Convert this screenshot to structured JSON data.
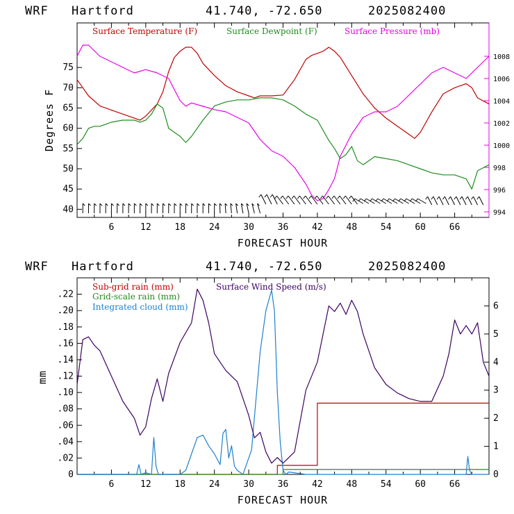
{
  "header": {
    "model": "WRF",
    "station": "Hartford",
    "coords": "41.740, -72.650",
    "init": "2025082400"
  },
  "chart_data": [
    {
      "type": "line",
      "xlabel": "FORECAST HOUR",
      "ylabel": "Degrees F",
      "xlim": [
        0,
        72
      ],
      "ylim": [
        38,
        86
      ],
      "y2lim": [
        993.5,
        1011
      ],
      "x_ticks": [
        6,
        12,
        18,
        24,
        30,
        36,
        42,
        48,
        54,
        60,
        66
      ],
      "y_ticks": [
        40,
        45,
        50,
        55,
        60,
        65,
        70,
        75
      ],
      "y2_ticks": [
        994,
        996,
        998,
        1000,
        1002,
        1004,
        1006,
        1008
      ],
      "x_tick_labels": [
        "6",
        "12",
        "18",
        "24",
        "30",
        "36",
        "42",
        "48",
        "54",
        "60",
        "66"
      ],
      "y_tick_labels": [
        "40",
        "45",
        "50",
        "55",
        "60",
        "65",
        "70",
        "75"
      ],
      "y2_tick_labels": [
        "994",
        "996",
        "998",
        "1000",
        "1002",
        "1004",
        "1006",
        "1008"
      ],
      "legend": [
        "Surface Temperature (F)",
        "Surface Dewpoint (F)",
        "Surface Pressure (mb)"
      ],
      "series": [
        {
          "name": "Surface Temperature (F)",
          "color": "#c00000",
          "axis": "left",
          "x": [
            0,
            2,
            4,
            6,
            8,
            10,
            11,
            12,
            13,
            14,
            15,
            16,
            17,
            18,
            19,
            20,
            21,
            22,
            24,
            26,
            28,
            30,
            31,
            32,
            34,
            36,
            38,
            40,
            41,
            42,
            43,
            44,
            45,
            46,
            48,
            50,
            52,
            54,
            56,
            58,
            59,
            60,
            62,
            64,
            66,
            67,
            68,
            69,
            70,
            72
          ],
          "values": [
            72,
            68,
            65.5,
            64.5,
            63.5,
            62.5,
            62,
            63,
            64.5,
            66,
            69,
            74,
            77.5,
            79,
            80,
            80,
            78.5,
            76,
            73,
            70.5,
            69,
            68,
            67.5,
            68,
            68,
            68.2,
            72,
            77,
            78,
            78.5,
            79,
            80,
            79,
            77.5,
            73,
            68.5,
            65,
            62.5,
            60.5,
            58.5,
            57.5,
            59,
            64,
            68.5,
            70,
            70.5,
            71,
            70,
            67.5,
            66
          ]
        },
        {
          "name": "Surface Dewpoint (F)",
          "color": "#1e8c1e",
          "axis": "left",
          "x": [
            0,
            1,
            2,
            3,
            4,
            6,
            8,
            10,
            11,
            12,
            13,
            14,
            15,
            16,
            18,
            19,
            20,
            22,
            24,
            26,
            28,
            30,
            32,
            34,
            36,
            38,
            40,
            42,
            44,
            45,
            46,
            47,
            48,
            49,
            50,
            52,
            54,
            56,
            58,
            60,
            62,
            64,
            66,
            68,
            69,
            70,
            72
          ],
          "values": [
            56,
            57.5,
            60,
            60.5,
            60.5,
            61.5,
            62,
            62,
            61.5,
            62,
            63.5,
            66,
            65,
            60,
            58,
            56.5,
            58,
            62,
            65.5,
            66.5,
            67,
            67,
            67.5,
            67.5,
            67,
            65.5,
            63.5,
            62,
            57,
            55,
            52.5,
            53.5,
            55.5,
            52,
            51,
            53,
            52.5,
            52,
            51,
            50,
            49,
            48.5,
            48.5,
            47.5,
            45,
            49.5,
            51
          ]
        },
        {
          "name": "Surface Pressure (mb)",
          "color": "#e600e6",
          "axis": "right",
          "x": [
            0,
            1,
            2,
            4,
            6,
            8,
            10,
            12,
            14,
            16,
            18,
            19,
            20,
            22,
            24,
            26,
            28,
            30,
            32,
            34,
            36,
            38,
            40,
            41,
            42,
            43,
            44,
            45,
            46,
            48,
            50,
            52,
            54,
            56,
            58,
            60,
            62,
            64,
            66,
            68,
            70,
            72
          ],
          "values": [
            1008,
            1009,
            1009,
            1008,
            1007.5,
            1007,
            1006.5,
            1006.8,
            1006.5,
            1006,
            1004,
            1003.5,
            1003.8,
            1003.5,
            1003.2,
            1003,
            1002.5,
            1002,
            1000.5,
            999.5,
            999,
            998,
            996.5,
            995.5,
            995,
            995.2,
            996,
            997,
            999,
            1001,
            1002.5,
            1003,
            1003,
            1003.5,
            1004.5,
            1005.5,
            1006.5,
            1007,
            1006.5,
            1006,
            1007,
            1008
          ]
        }
      ],
      "wind_barbs": {
        "description": "surface wind barbs along bottom of panel"
      }
    },
    {
      "type": "line",
      "xlabel": "FORECAST HOUR",
      "ylabel": "mm",
      "xlim": [
        0,
        72
      ],
      "ylim": [
        0,
        0.24
      ],
      "y2lim": [
        0,
        7
      ],
      "x_ticks": [
        6,
        12,
        18,
        24,
        30,
        36,
        42,
        48,
        54,
        60,
        66
      ],
      "y_ticks": [
        0,
        0.02,
        0.04,
        0.06,
        0.08,
        0.1,
        0.12,
        0.14,
        0.16,
        0.18,
        0.2,
        0.22
      ],
      "y2_ticks": [
        0,
        1,
        2,
        3,
        4,
        5,
        6
      ],
      "x_tick_labels": [
        "6",
        "12",
        "18",
        "24",
        "30",
        "36",
        "42",
        "48",
        "54",
        "60",
        "66"
      ],
      "y_tick_labels": [
        "0",
        ".02",
        ".04",
        ".06",
        ".08",
        ".10",
        ".12",
        ".14",
        ".16",
        ".18",
        ".20",
        ".22"
      ],
      "y2_tick_labels": [
        "0",
        "1",
        "2",
        "3",
        "4",
        "5",
        "6"
      ],
      "legend": [
        "Sub-grid rain (mm)",
        "Grid-scale rain (mm)",
        "Integrated cloud (mm)",
        "Surface Wind Speed (m/s)"
      ],
      "series": [
        {
          "name": "Sub-grid rain (mm)",
          "color": "#c00000",
          "axis": "left",
          "x": [
            0,
            35,
            35,
            42,
            42,
            72
          ],
          "values": [
            0,
            0,
            0.011,
            0.011,
            0.087,
            0.087
          ]
        },
        {
          "name": "Grid-scale rain (mm)",
          "color": "#1e8c1e",
          "axis": "left",
          "x": [
            0,
            36,
            36,
            72
          ],
          "values": [
            0,
            0,
            0.006,
            0.006
          ]
        },
        {
          "name": "Integrated cloud (mm)",
          "color": "#1e7fd0",
          "axis": "left",
          "x": [
            0,
            10.4,
            10.8,
            11.2,
            12,
            13,
            13.4,
            13.8,
            14.2,
            15,
            18,
            19,
            20,
            21,
            22,
            23,
            24,
            25,
            25.5,
            26,
            26.5,
            27,
            27.5,
            28,
            29,
            30,
            30.5,
            31,
            32,
            33,
            34,
            34.5,
            35,
            35.5,
            36,
            36.5,
            37,
            40,
            68,
            68.3,
            68.6,
            69,
            72
          ],
          "values": [
            0,
            0,
            0.012,
            0,
            0.002,
            0,
            0.045,
            0.01,
            0,
            0,
            0,
            0.005,
            0.025,
            0.045,
            0.048,
            0.035,
            0.025,
            0.012,
            0.05,
            0.055,
            0.02,
            0.035,
            0.01,
            0.005,
            0,
            0.02,
            0.03,
            0.07,
            0.15,
            0.2,
            0.225,
            0.2,
            0.1,
            0.04,
            0.005,
            0,
            0.003,
            0,
            0,
            0.022,
            0.005,
            0,
            0
          ]
        },
        {
          "name": "Surface Wind Speed (m/s)",
          "color": "#3a0060",
          "axis": "right",
          "x": [
            0,
            1,
            2,
            3,
            4,
            6,
            8,
            10,
            11,
            12,
            13,
            14,
            15,
            16,
            18,
            20,
            21,
            22,
            23,
            24,
            26,
            28,
            30,
            31,
            32,
            33,
            34,
            35,
            36,
            38,
            40,
            42,
            44,
            45,
            46,
            47,
            48,
            49,
            50,
            52,
            54,
            56,
            58,
            60,
            62,
            64,
            65,
            66,
            67,
            68,
            69,
            70,
            71,
            72
          ],
          "values": [
            3.2,
            4.8,
            4.9,
            4.6,
            4.4,
            3.5,
            2.6,
            2.0,
            1.4,
            1.7,
            2.7,
            3.4,
            2.6,
            3.6,
            4.7,
            5.4,
            6.6,
            6.2,
            5.4,
            4.3,
            3.7,
            3.3,
            2.1,
            1.3,
            1.5,
            0.8,
            0.4,
            0.6,
            0.4,
            0.8,
            3.0,
            4.0,
            6.0,
            5.8,
            6.1,
            5.7,
            6.2,
            5.8,
            5.0,
            3.8,
            3.2,
            2.9,
            2.7,
            2.6,
            2.6,
            3.5,
            4.3,
            5.5,
            5.0,
            5.3,
            5.0,
            5.4,
            4.0,
            3.5
          ]
        }
      ]
    }
  ]
}
